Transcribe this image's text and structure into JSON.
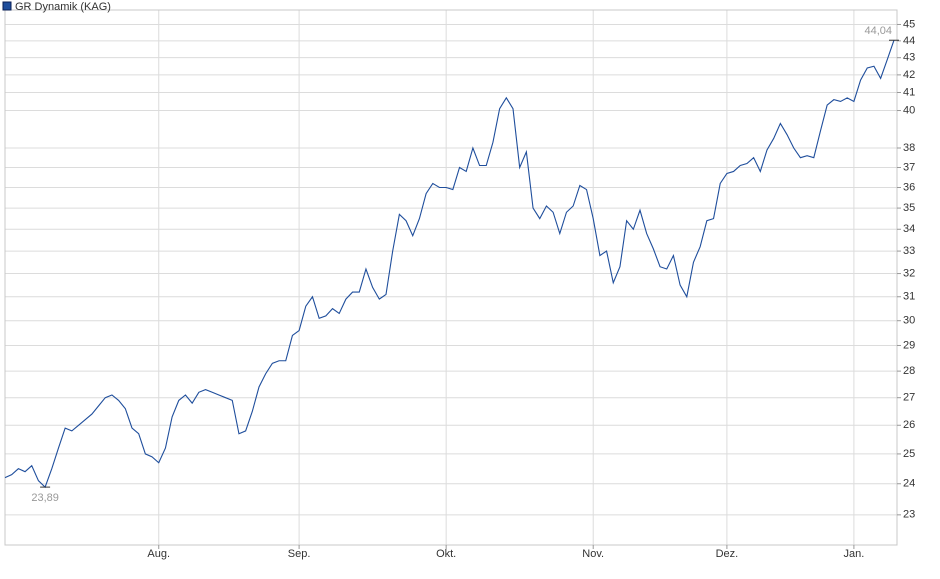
{
  "chart_data": {
    "type": "line",
    "categories": [
      null,
      null,
      null,
      null,
      null,
      null,
      null,
      null,
      null,
      null,
      null,
      null,
      null,
      null,
      null,
      null,
      null,
      null,
      null,
      null,
      null,
      null,
      null,
      "Aug.",
      null,
      null,
      null,
      null,
      null,
      null,
      null,
      null,
      null,
      null,
      null,
      null,
      null,
      null,
      null,
      null,
      null,
      null,
      null,
      null,
      "Sep.",
      null,
      null,
      null,
      null,
      null,
      null,
      null,
      null,
      null,
      null,
      null,
      null,
      null,
      null,
      null,
      null,
      null,
      null,
      null,
      null,
      null,
      "Okt.",
      null,
      null,
      null,
      null,
      null,
      null,
      null,
      null,
      null,
      null,
      null,
      null,
      null,
      null,
      null,
      null,
      null,
      null,
      null,
      null,
      null,
      "Nov.",
      null,
      null,
      null,
      null,
      null,
      null,
      null,
      null,
      null,
      null,
      null,
      null,
      null,
      null,
      null,
      null,
      null,
      null,
      null,
      "Dez.",
      null,
      null,
      null,
      null,
      null,
      null,
      null,
      null,
      null,
      null,
      null,
      null,
      null,
      null,
      null,
      null,
      null,
      null,
      "Jan.",
      null,
      null,
      null,
      null,
      null,
      null
    ],
    "series": [
      {
        "name": "GR Dynamik (KAG)",
        "color": "#1f4e9c",
        "values": [
          24.2,
          24.3,
          24.5,
          24.4,
          24.6,
          24.1,
          23.89,
          24.5,
          25.2,
          25.9,
          25.8,
          26.0,
          26.2,
          26.4,
          26.7,
          27.0,
          27.1,
          26.9,
          26.6,
          25.9,
          25.7,
          25.0,
          24.9,
          24.7,
          25.2,
          26.3,
          26.9,
          27.1,
          26.8,
          27.2,
          27.3,
          27.2,
          27.1,
          27.0,
          26.9,
          25.7,
          25.8,
          26.5,
          27.4,
          27.9,
          28.3,
          28.4,
          28.4,
          29.4,
          29.6,
          30.6,
          31.0,
          30.1,
          30.2,
          30.5,
          30.3,
          30.9,
          31.2,
          31.2,
          32.2,
          31.4,
          30.9,
          31.1,
          33.0,
          34.7,
          34.4,
          33.7,
          34.5,
          35.7,
          36.2,
          36.0,
          36.0,
          35.9,
          37.0,
          36.8,
          38.0,
          37.1,
          37.1,
          38.3,
          40.1,
          40.7,
          40.1,
          37.0,
          37.8,
          35.0,
          34.5,
          35.1,
          34.8,
          33.8,
          34.8,
          35.1,
          36.1,
          35.9,
          34.5,
          32.8,
          33.0,
          31.6,
          32.3,
          34.4,
          34.0,
          34.9,
          33.8,
          33.1,
          32.3,
          32.2,
          32.8,
          31.5,
          31.0,
          32.5,
          33.2,
          34.4,
          34.5,
          36.2,
          36.7,
          36.8,
          37.1,
          37.2,
          37.5,
          36.8,
          37.9,
          38.5,
          39.3,
          38.7,
          38.0,
          37.5,
          37.6,
          37.5,
          38.9,
          40.3,
          40.6,
          40.5,
          40.7,
          40.5,
          41.7,
          42.4,
          42.5,
          41.8,
          42.9,
          44.04
        ],
        "value_labels": [
          null,
          null,
          null,
          null,
          null,
          null,
          "23,89",
          null,
          null,
          null,
          null,
          null,
          null,
          null,
          null,
          null,
          null,
          null,
          null,
          null,
          null,
          null,
          null,
          null,
          null,
          null,
          null,
          null,
          null,
          null,
          null,
          null,
          null,
          null,
          null,
          null,
          null,
          null,
          null,
          null,
          null,
          null,
          null,
          null,
          null,
          null,
          null,
          null,
          null,
          null,
          null,
          null,
          null,
          null,
          null,
          null,
          null,
          null,
          null,
          null,
          null,
          null,
          null,
          null,
          null,
          null,
          null,
          null,
          null,
          null,
          null,
          null,
          null,
          null,
          null,
          null,
          null,
          null,
          null,
          null,
          null,
          null,
          null,
          null,
          null,
          null,
          null,
          null,
          null,
          null,
          null,
          null,
          null,
          null,
          null,
          null,
          null,
          null,
          null,
          null,
          null,
          null,
          null,
          null,
          null,
          null,
          null,
          null,
          null,
          null,
          null,
          null,
          null,
          null,
          null,
          null,
          null,
          null,
          null,
          null,
          null,
          null,
          null,
          null,
          null,
          null,
          null,
          null,
          null,
          null,
          null,
          null,
          null,
          "44,04"
        ]
      }
    ],
    "ylim": [
      22.07,
      45.9
    ],
    "yticks": [
      23,
      24,
      25,
      26,
      27,
      28,
      29,
      30,
      31,
      32,
      33,
      34,
      35,
      36,
      37,
      38,
      40,
      41,
      42,
      43,
      44,
      45
    ],
    "log_scale": true,
    "grid": true
  }
}
